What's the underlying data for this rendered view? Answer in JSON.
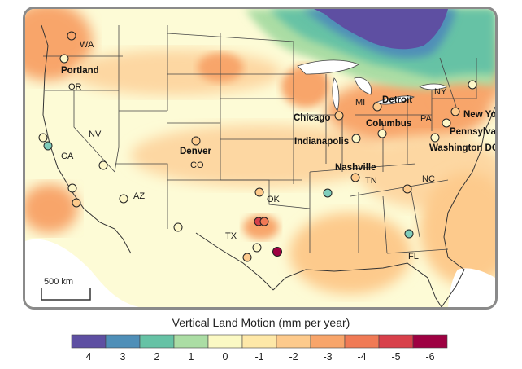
{
  "map": {
    "scale_bar_label": "500 km",
    "state_labels": [
      "WA",
      "OR",
      "CA",
      "NV",
      "AZ",
      "CO",
      "TX",
      "OK",
      "MI",
      "PA",
      "NY",
      "TN",
      "NC",
      "FL"
    ],
    "city_labels": [
      "Portland",
      "Denver",
      "Chicago",
      "Detroit",
      "Columbus",
      "Indianapolis",
      "New York",
      "Pennsylvania",
      "Washington DC",
      "Nashville"
    ]
  },
  "legend": {
    "title": "Vertical Land Motion (mm per year)",
    "ticks": [
      "4",
      "3",
      "2",
      "1",
      "0",
      "-1",
      "-2",
      "-3",
      "-4",
      "-5",
      "-6"
    ],
    "colors": [
      "#5e4fa2",
      "#4f8fb8",
      "#66c2a5",
      "#abdda4",
      "#fbf9c4",
      "#fee8a8",
      "#fdca8c",
      "#f8a56a",
      "#f07a55",
      "#d8404a",
      "#9e0142"
    ]
  }
}
